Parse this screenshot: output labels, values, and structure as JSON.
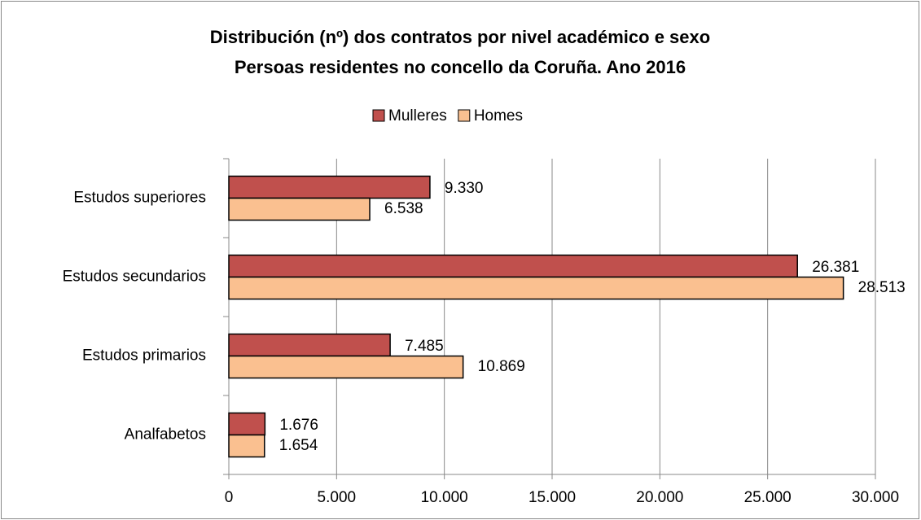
{
  "chart_data": {
    "type": "hbar",
    "title": "Distribución (nº)  dos contratos  por nivel académico e sexo",
    "subtitle": "Persoas residentes no concello da Coruña. Ano 2016",
    "categories": [
      "Estudos superiores",
      "Estudos secundarios",
      "Estudos primarios",
      "Analfabetos"
    ],
    "series": [
      {
        "name": "Mulleres",
        "color": "#c0504d",
        "values": [
          9330,
          26381,
          7485,
          1676
        ],
        "value_labels": [
          "9.330",
          "26.381",
          "7.485",
          "1.676"
        ]
      },
      {
        "name": "Homes",
        "color": "#fac090",
        "values": [
          6538,
          28513,
          10869,
          1654
        ],
        "value_labels": [
          "6.538",
          "28.513",
          "10.869",
          "1.654"
        ]
      }
    ],
    "xlim": [
      0,
      30000
    ],
    "xticks": [
      0,
      {
        "value": 5000,
        "label": "5.000"
      },
      {
        "value": 10000,
        "label": "10.000"
      },
      {
        "value": 15000,
        "label": "15.000"
      },
      {
        "value": 20000,
        "label": "20.000"
      },
      {
        "value": 25000,
        "label": "25.000"
      },
      {
        "value": 30000,
        "label": "30.000"
      }
    ],
    "grid": true,
    "legend": "top"
  }
}
